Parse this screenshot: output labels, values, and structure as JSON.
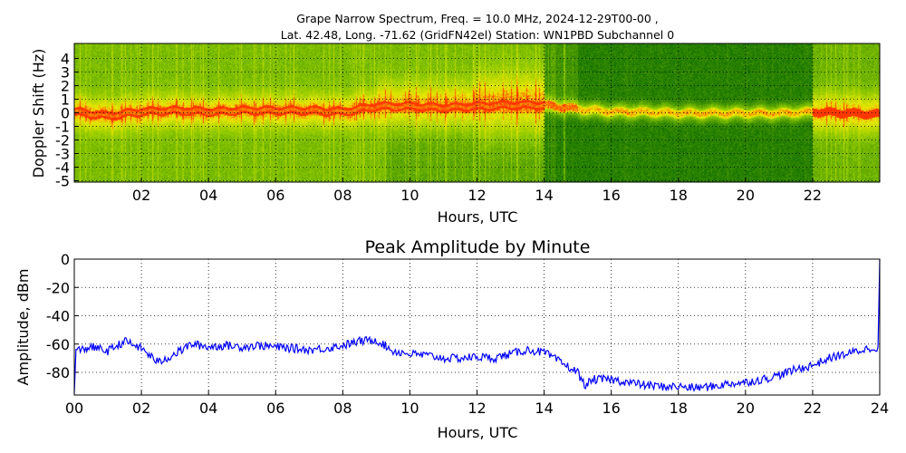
{
  "chart_data": [
    {
      "type": "heatmap",
      "title_line1": "Grape Narrow Spectrum, Freq. = 10.0 MHz, 2024-12-29T00-00 ,",
      "title_line2": "Lat.  42.48, Long. -71.62 (GridFN42el) Station: WN1PBD Subchannel 0",
      "xlabel": "Hours, UTC",
      "ylabel": "Doppler Shift (Hz)",
      "xlim": [
        0,
        24
      ],
      "ylim": [
        -5.1,
        5.1
      ],
      "xticks": [
        "02",
        "04",
        "06",
        "08",
        "10",
        "12",
        "14",
        "16",
        "18",
        "20",
        "22"
      ],
      "xtick_values": [
        2,
        4,
        6,
        8,
        10,
        12,
        14,
        16,
        18,
        20,
        22
      ],
      "yticks": [
        "4",
        "3",
        "2",
        "1",
        "0",
        "-1",
        "-2",
        "-3",
        "-4",
        "-5"
      ],
      "ytick_values": [
        4,
        3,
        2,
        1,
        0,
        -1,
        -2,
        -3,
        -4,
        -5
      ],
      "grid": true,
      "colors": {
        "low": "#006400",
        "mid": "#d8e800",
        "high": "#ff2000"
      },
      "doppler_trace": {
        "hours": [
          0,
          1,
          2,
          3,
          4,
          5,
          6,
          7,
          8,
          9,
          10,
          11,
          12,
          13,
          14,
          15,
          16,
          17,
          18,
          19,
          20,
          21,
          22,
          23,
          24
        ],
        "hz": [
          0.1,
          -0.2,
          0.1,
          0.2,
          0.1,
          0.2,
          0.2,
          0.2,
          0.1,
          0.5,
          0.5,
          0.4,
          0.5,
          0.6,
          0.6,
          0.3,
          0.1,
          0.1,
          0.0,
          0.0,
          0.0,
          0.0,
          0.1,
          0.0,
          -0.1
        ]
      }
    },
    {
      "type": "line",
      "title": "Peak Amplitude by Minute",
      "xlabel": "Hours, UTC",
      "ylabel": "Amplitude, dBm",
      "xlim": [
        0,
        24
      ],
      "ylim": [
        -96,
        0
      ],
      "xticks": [
        "00",
        "02",
        "04",
        "06",
        "08",
        "10",
        "12",
        "14",
        "16",
        "18",
        "20",
        "22",
        "24"
      ],
      "xtick_values": [
        0,
        2,
        4,
        6,
        8,
        10,
        12,
        14,
        16,
        18,
        20,
        22,
        24
      ],
      "yticks": [
        "0",
        "-20",
        "-40",
        "-60",
        "-80"
      ],
      "ytick_values": [
        0,
        -20,
        -40,
        -60,
        -80
      ],
      "grid": true,
      "line_color": "#0000ff",
      "series": [
        {
          "name": "Peak Amplitude",
          "x": [
            0,
            0.05,
            0.5,
            1,
            1.5,
            2,
            2.5,
            3,
            3.5,
            4,
            4.5,
            5,
            5.5,
            6,
            6.5,
            7,
            7.5,
            8,
            8.5,
            9,
            9.5,
            10,
            10.5,
            11,
            11.5,
            12,
            12.5,
            13,
            13.5,
            14,
            14.5,
            15,
            15.2,
            15.5,
            16,
            16.5,
            17,
            17.5,
            18,
            18.5,
            19,
            19.5,
            20,
            20.5,
            21,
            21.5,
            22,
            22.5,
            23,
            23.5,
            23.95,
            24
          ],
          "y": [
            -95,
            -65,
            -62,
            -65,
            -58,
            -63,
            -73,
            -67,
            -60,
            -62,
            -61,
            -62,
            -61,
            -62,
            -63,
            -64,
            -63,
            -61,
            -58,
            -57,
            -65,
            -67,
            -68,
            -70,
            -70,
            -69,
            -70,
            -67,
            -64,
            -66,
            -73,
            -80,
            -89,
            -85,
            -85,
            -87,
            -89,
            -90,
            -90,
            -91,
            -90,
            -88,
            -87,
            -85,
            -82,
            -78,
            -75,
            -70,
            -67,
            -64,
            -62,
            0
          ]
        }
      ]
    }
  ]
}
